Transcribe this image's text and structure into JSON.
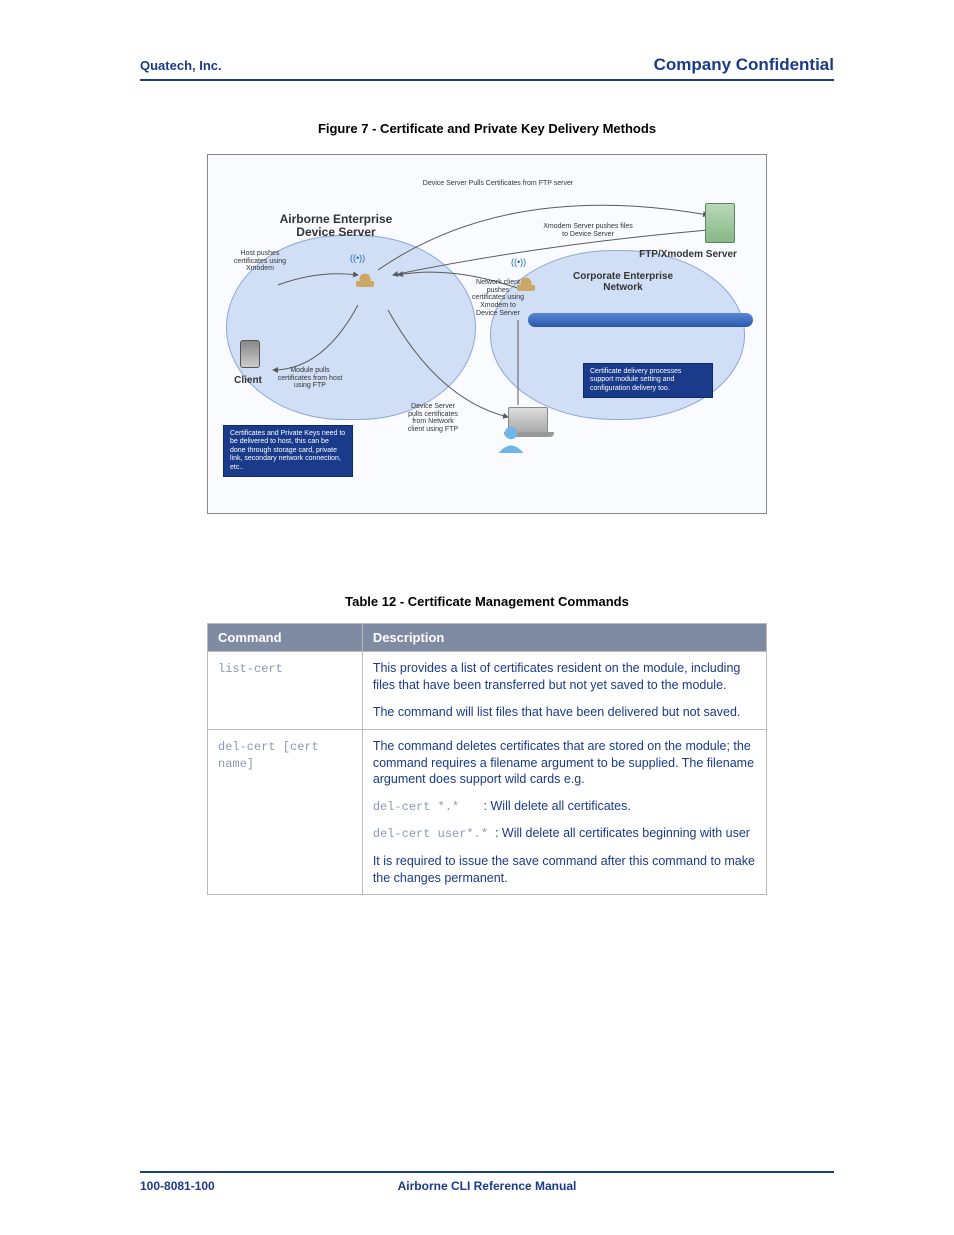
{
  "header": {
    "left": "Quatech, Inc.",
    "right": "Company Confidential"
  },
  "figure": {
    "caption": "Figure 7 - Certificate and Private Key Delivery Methods",
    "labels": {
      "device_server": "Airborne Enterprise\nDevice Server",
      "host_pushes": "Host pushes\ncertificates using\nXmodem",
      "module_pulls": "Module pulls\ncertificates from host\nusing FTP",
      "client": "Client",
      "info_left": "Certificates and Private Keys need to be delivered to host, this can be done through storage card, private link, secondary network connection, etc..",
      "ds_pulls": "Device Server Pulls Certificates from FTP server",
      "xmodem_push": "Xmodem Server pushes files\nto Device Server",
      "ftp_server": "FTP/Xmodem Server",
      "corp_net": "Corporate Enterprise\nNetwork",
      "net_client": "Network client\npushes\ncertificates using\nXmodem to\nDevice Server",
      "ds_pulls_net": "Device Server\npulls certificates\nfrom Network\nclient using FTP",
      "info_right": "Certificate delivery processes support module setting and configuration delivery too."
    },
    "colors": {
      "border": "#888888",
      "bg": "#fafbff",
      "cloud_fill": "#d0dff5",
      "cloud_stroke": "#8aa8d8",
      "infobox_bg": "#1a3a8a",
      "netbar_top": "#5a88d8",
      "netbar_bot": "#2a58a8",
      "arrow": "#5a5a5a"
    }
  },
  "table": {
    "caption": "Table 12 - Certificate Management Commands",
    "headers": {
      "cmd": "Command",
      "desc": "Description"
    },
    "header_bg": "#7f8aa3",
    "header_fg": "#ffffff",
    "text_color": "#1a3a8a",
    "cmd_color": "#8a98b8",
    "rows": [
      {
        "cmd": "list-cert",
        "desc_p1": "This provides a list of certificates resident on the module, including files that have been transferred but not yet saved to the module.",
        "desc_p2": "The command will list files that have been delivered but not saved."
      },
      {
        "cmd": "del-cert [cert name]",
        "desc_p1": "The command deletes certificates that are stored on the module; the command requires a filename argument to be supplied. The filename argument does support wild cards e.g.",
        "ex1_cmd": "del-cert *.*",
        "ex1_txt": ": Will delete all certificates.",
        "ex2_cmd": "del-cert user*.*",
        "ex2_txt": ": Will delete all certificates beginning with user",
        "desc_p3": "It is required to issue the save command after this command to make the changes permanent."
      }
    ]
  },
  "footer": {
    "left": "100-8081-100",
    "center": "Airborne CLI Reference Manual",
    "right": ""
  }
}
